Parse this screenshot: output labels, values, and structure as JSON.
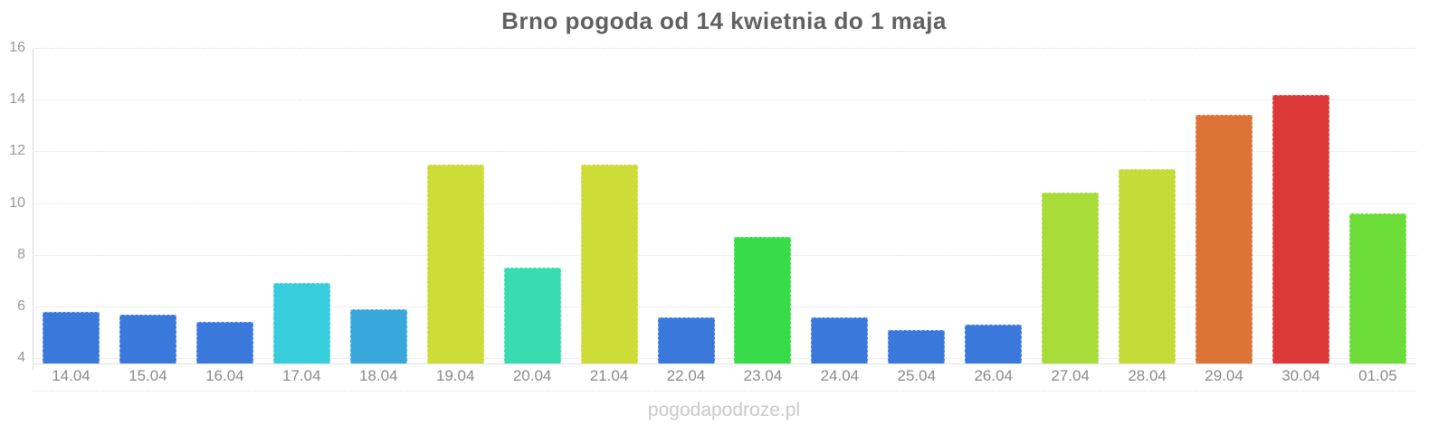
{
  "title": "Brno pogoda od 14 kwietnia do 1 maja",
  "watermark": "pogodapodroze.pl",
  "chart_data": {
    "type": "bar",
    "title": "Brno pogoda od 14 kwietnia do 1 maja",
    "categories": [
      "14.04",
      "15.04",
      "16.04",
      "17.04",
      "18.04",
      "19.04",
      "20.04",
      "21.04",
      "22.04",
      "23.04",
      "24.04",
      "25.04",
      "26.04",
      "27.04",
      "28.04",
      "29.04",
      "30.04",
      "01.05"
    ],
    "values": [
      5.8,
      5.7,
      5.4,
      6.9,
      5.9,
      11.5,
      7.5,
      11.5,
      5.6,
      8.7,
      5.6,
      5.1,
      5.3,
      10.4,
      11.3,
      13.4,
      14.2,
      9.6
    ],
    "bar_colors": [
      "#3b78dc",
      "#3b78dc",
      "#3b78dc",
      "#38cddc",
      "#38a8dc",
      "#cedc38",
      "#38dcb0",
      "#cedc38",
      "#3b78dc",
      "#38dc48",
      "#3b78dc",
      "#3b78dc",
      "#3b78dc",
      "#a8dc38",
      "#c4dc38",
      "#dc7438",
      "#dc3838",
      "#6cdc38"
    ],
    "xlabel": "",
    "ylabel": "",
    "yticks": [
      4,
      6,
      8,
      10,
      12,
      14,
      16
    ],
    "ylim": [
      3.8,
      16
    ],
    "grid": true,
    "legend": false
  },
  "colors": {
    "background": "#ffffff",
    "title_text": "#606060",
    "y_label_text": "#999999",
    "x_label_text": "#8a8a8a",
    "gridline": "#dddddd",
    "axis_line": "#d9d9d9",
    "watermark_text": "#c9c9c9"
  }
}
